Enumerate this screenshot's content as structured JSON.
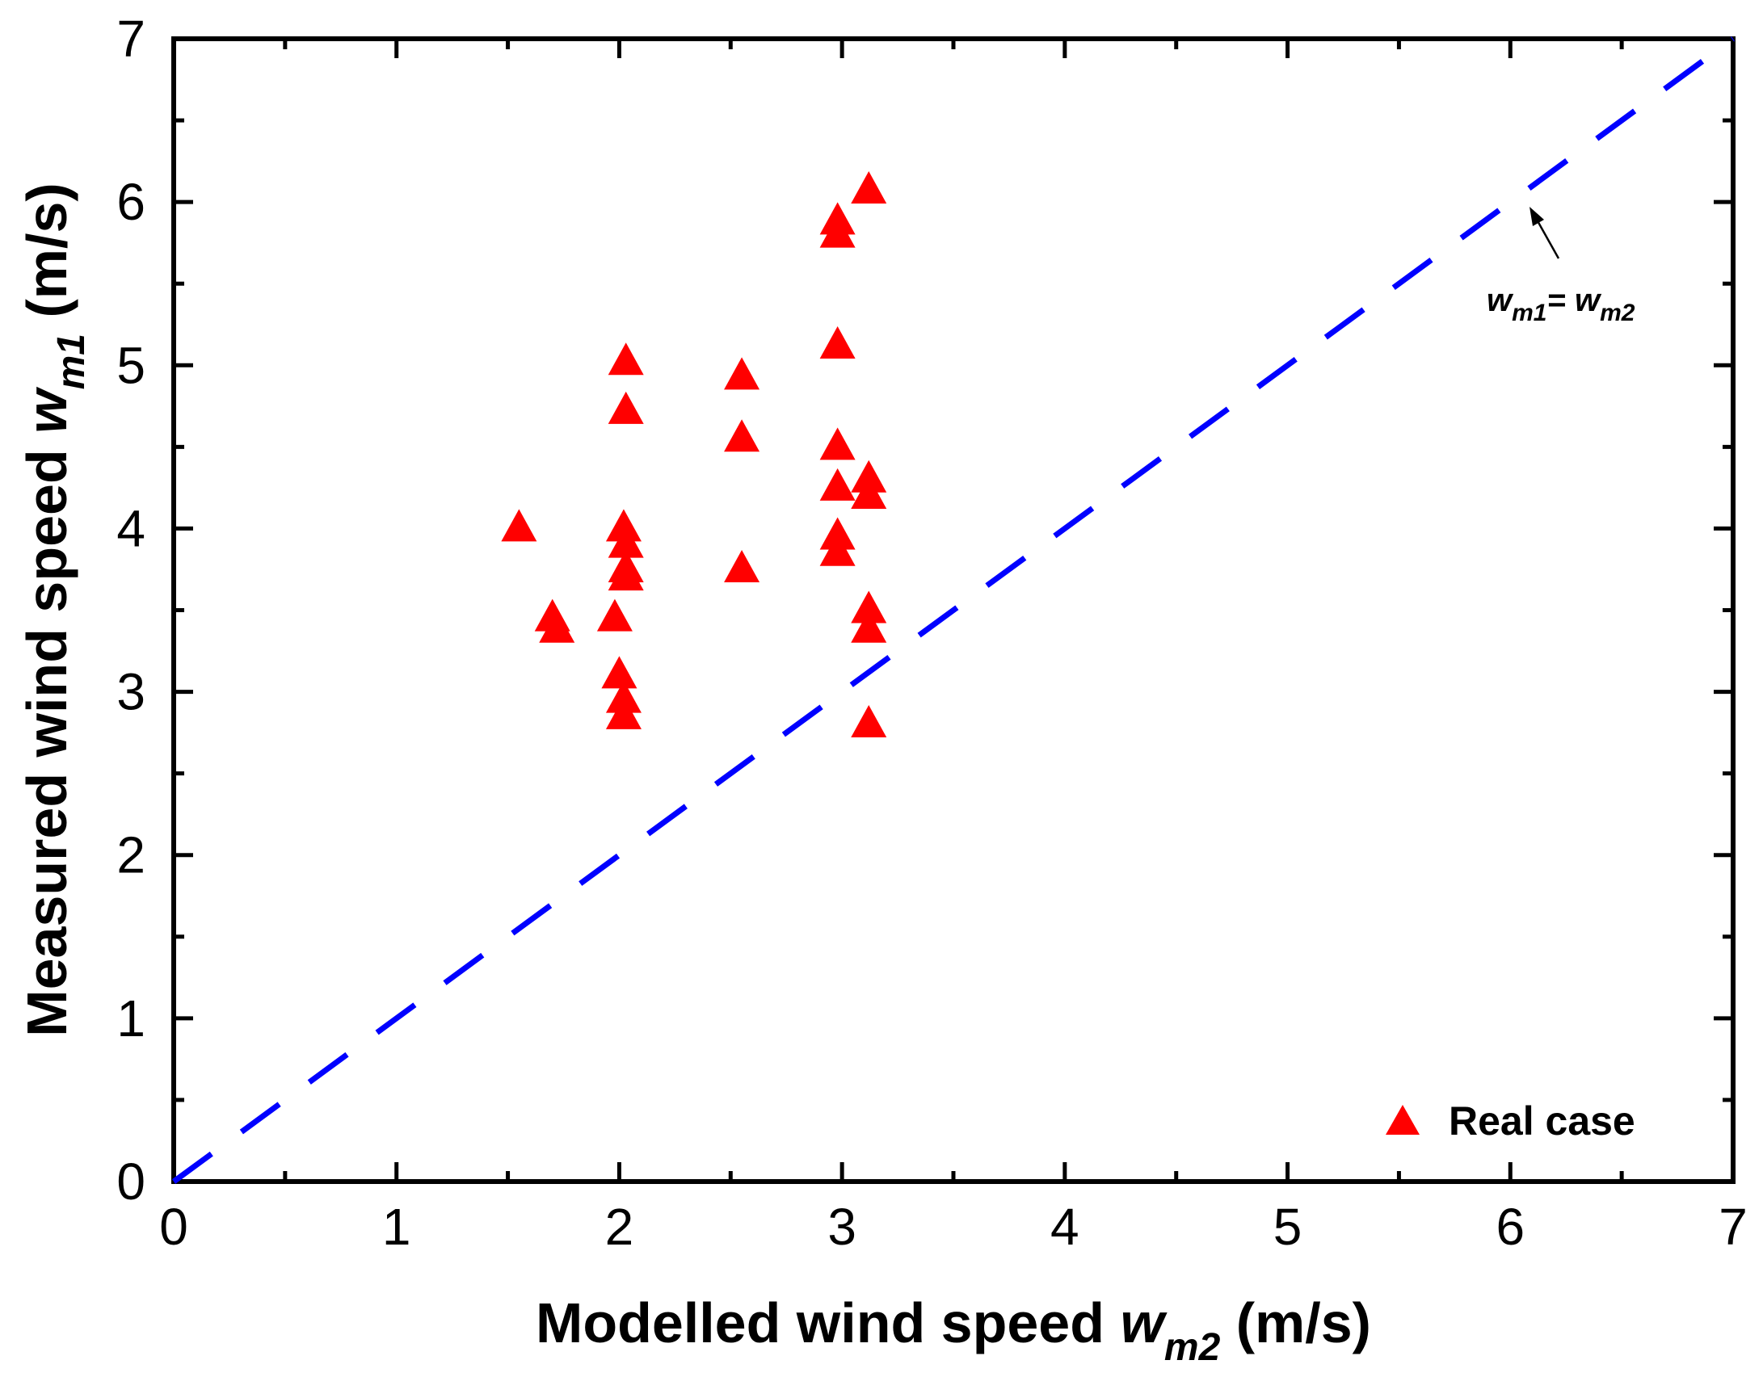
{
  "chart_data": {
    "type": "scatter",
    "xlabel_prefix": "Modelled wind speed ",
    "xlabel_var": "w",
    "xlabel_sub": "m2",
    "xlabel_suffix": " (m/s)",
    "ylabel_prefix": "Measured wind speed ",
    "ylabel_var": "w",
    "ylabel_sub": "m1",
    "ylabel_suffix": "  (m/s)",
    "xlim": [
      0,
      7
    ],
    "ylim": [
      0,
      7
    ],
    "x_ticks": [
      "0",
      "1",
      "2",
      "3",
      "4",
      "5",
      "6",
      "7"
    ],
    "y_ticks": [
      "0",
      "1",
      "2",
      "3",
      "4",
      "5",
      "6",
      "7"
    ],
    "series": [
      {
        "name": "Real case",
        "marker": "triangle",
        "color": "#ff0000",
        "points": [
          [
            1.55,
            4.0
          ],
          [
            1.7,
            3.45
          ],
          [
            1.72,
            3.38
          ],
          [
            1.98,
            3.45
          ],
          [
            2.0,
            3.1
          ],
          [
            2.02,
            2.95
          ],
          [
            2.02,
            2.85
          ],
          [
            2.03,
            3.7
          ],
          [
            2.03,
            3.75
          ],
          [
            2.03,
            3.9
          ],
          [
            2.02,
            4.0
          ],
          [
            2.03,
            4.72
          ],
          [
            2.03,
            5.02
          ],
          [
            2.55,
            4.93
          ],
          [
            2.55,
            4.55
          ],
          [
            2.55,
            3.75
          ],
          [
            2.98,
            5.12
          ],
          [
            2.98,
            5.8
          ],
          [
            2.98,
            5.88
          ],
          [
            2.98,
            4.5
          ],
          [
            2.98,
            4.25
          ],
          [
            2.98,
            3.95
          ],
          [
            2.98,
            3.85
          ],
          [
            3.12,
            6.07
          ],
          [
            3.12,
            4.3
          ],
          [
            3.12,
            4.2
          ],
          [
            3.12,
            3.5
          ],
          [
            3.12,
            3.38
          ],
          [
            3.12,
            2.8
          ]
        ]
      },
      {
        "name": "w_m1 = w_m2",
        "type": "line",
        "style": "dashed",
        "color": "#0000ff",
        "x": [
          0,
          7
        ],
        "y": [
          0,
          7
        ]
      }
    ],
    "legend": {
      "label": "Real case",
      "placement": "bottom-right"
    },
    "annotation": {
      "var1": "w",
      "sub1": "m1",
      "eq": "= ",
      "var2": "w",
      "sub2": "m2",
      "points_to": [
        6.0,
        6.0
      ]
    }
  }
}
